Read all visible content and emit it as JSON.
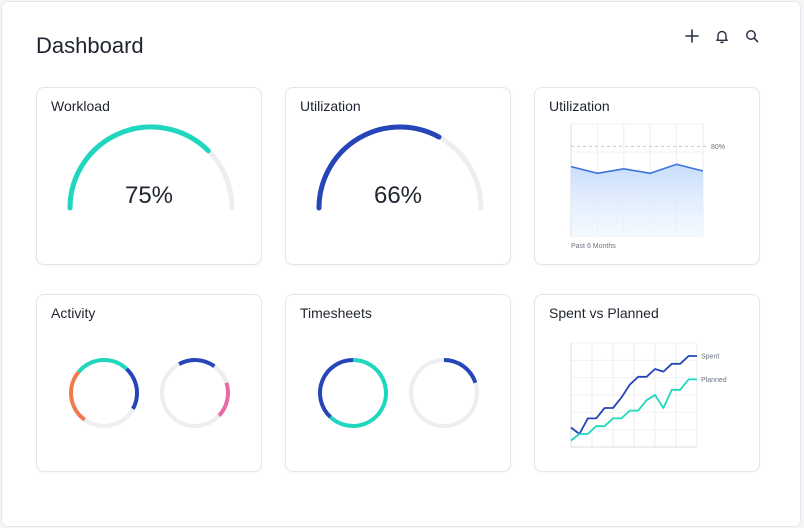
{
  "header": {
    "title": "Dashboard",
    "actions": [
      {
        "icon": "plus-icon"
      },
      {
        "icon": "bell-icon"
      },
      {
        "icon": "search-icon"
      }
    ]
  },
  "colors": {
    "teal": "#1fd6bf",
    "blue": "#2545b8",
    "orange": "#f07a4e",
    "pink": "#e96aa8",
    "track": "#eceef1",
    "chart_line": "#3a74dd",
    "chart_fill": "#cfe2fb"
  },
  "cards": {
    "workload": {
      "title": "Workload",
      "value_label": "75%",
      "value": 0.75,
      "color": "#1fd6bf"
    },
    "utilization_gauge": {
      "title": "Utilization",
      "value_label": "66%",
      "value": 0.66,
      "color": "#2545b8"
    },
    "utilization_chart": {
      "title": "Utilization",
      "reference_label": "80%",
      "footer_label": "Past 6 Months"
    },
    "activity": {
      "title": "Activity"
    },
    "timesheets": {
      "title": "Timesheets"
    },
    "spent_vs_planned": {
      "title": "Spent vs Planned"
    }
  },
  "chart_data": [
    {
      "type": "area",
      "title": "Utilization",
      "xlabel": "Past 6 Months",
      "ylabel": "",
      "series": [
        {
          "values": [
            62,
            56,
            60,
            56,
            64,
            58
          ]
        }
      ],
      "reference_line": {
        "value": 80,
        "label": "80%"
      },
      "ylim": [
        0,
        100
      ],
      "grid": true
    },
    {
      "type": "line",
      "title": "Spent vs Planned",
      "x": [
        1,
        2,
        3,
        4,
        5,
        6,
        7,
        8,
        9,
        10,
        11,
        12,
        13,
        14,
        15,
        16
      ],
      "series": [
        {
          "name": "Spent",
          "values": [
            15,
            10,
            22,
            22,
            30,
            30,
            38,
            48,
            54,
            54,
            60,
            58,
            64,
            64,
            70,
            70
          ]
        },
        {
          "name": "Planned",
          "values": [
            5,
            10,
            10,
            16,
            16,
            22,
            22,
            28,
            28,
            36,
            40,
            30,
            44,
            44,
            52,
            52
          ]
        }
      ],
      "legend": "inline-right",
      "grid": true
    }
  ],
  "rings": {
    "activity": [
      {
        "segments": [
          {
            "color": "#1fd6bf",
            "from": 0.0,
            "to": 0.12
          },
          {
            "color": "#2545b8",
            "from": 0.12,
            "to": 0.33
          },
          {
            "color": "#f07a4e",
            "from": 0.6,
            "to": 0.86
          },
          {
            "color": "#1fd6bf",
            "from": 0.86,
            "to": 1.0
          }
        ]
      },
      {
        "segments": [
          {
            "color": "#2545b8",
            "from": 0.92,
            "to": 1.1
          },
          {
            "color": "#e96aa8",
            "from": 0.2,
            "to": 0.37
          }
        ]
      }
    ],
    "timesheets": [
      {
        "segments": [
          {
            "color": "#1fd6bf",
            "from": 0.0,
            "to": 0.62
          },
          {
            "color": "#2545b8",
            "from": 0.62,
            "to": 1.0
          }
        ]
      },
      {
        "segments": [
          {
            "color": "#2545b8",
            "from": 0.0,
            "to": 0.2
          }
        ]
      }
    ]
  }
}
